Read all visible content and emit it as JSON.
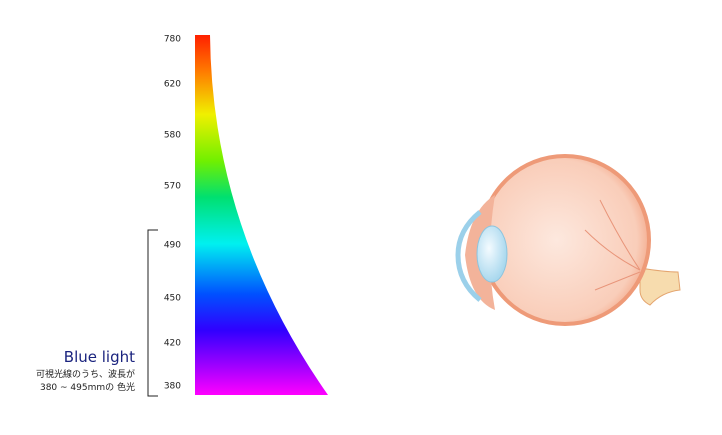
{
  "scale": {
    "labels": [
      "780",
      "620",
      "580",
      "570",
      "490",
      "450",
      "420",
      "380"
    ]
  },
  "note": {
    "title": "Blue light",
    "lines": [
      "可視光線のうち、波長が",
      "380 ~ 495mmの 色光"
    ]
  }
}
